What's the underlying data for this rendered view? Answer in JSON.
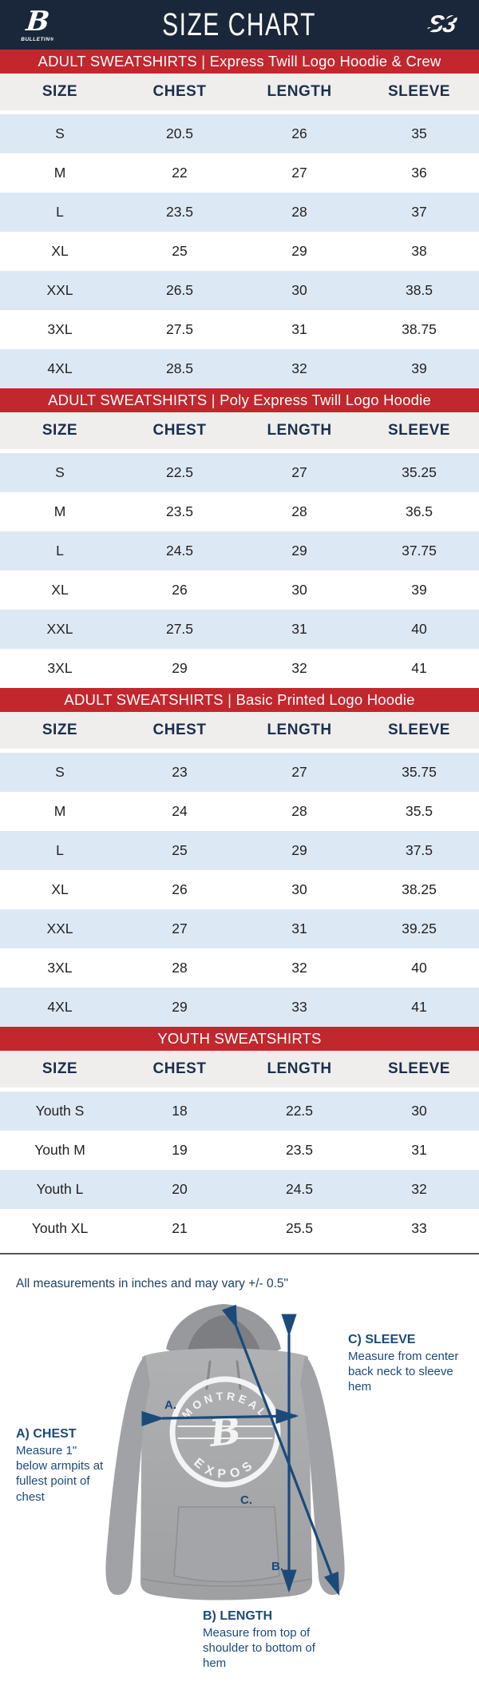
{
  "header": {
    "title": "SIZE CHART",
    "left_logo": {
      "glyph": "B",
      "brand": "BULLETIN®"
    },
    "right_logo": {
      "glyph": "S3"
    }
  },
  "columns": [
    "SIZE",
    "CHEST",
    "LENGTH",
    "SLEEVE"
  ],
  "tables": [
    {
      "banner": "ADULT SWEATSHIRTS | Express Twill Logo Hoodie & Crew",
      "rows": [
        [
          "S",
          "20.5",
          "26",
          "35"
        ],
        [
          "M",
          "22",
          "27",
          "36"
        ],
        [
          "L",
          "23.5",
          "28",
          "37"
        ],
        [
          "XL",
          "25",
          "29",
          "38"
        ],
        [
          "XXL",
          "26.5",
          "30",
          "38.5"
        ],
        [
          "3XL",
          "27.5",
          "31",
          "38.75"
        ],
        [
          "4XL",
          "28.5",
          "32",
          "39"
        ]
      ]
    },
    {
      "banner": "ADULT SWEATSHIRTS | Poly Express Twill Logo Hoodie",
      "rows": [
        [
          "S",
          "22.5",
          "27",
          "35.25"
        ],
        [
          "M",
          "23.5",
          "28",
          "36.5"
        ],
        [
          "L",
          "24.5",
          "29",
          "37.75"
        ],
        [
          "XL",
          "26",
          "30",
          "39"
        ],
        [
          "XXL",
          "27.5",
          "31",
          "40"
        ],
        [
          "3XL",
          "29",
          "32",
          "41"
        ]
      ]
    },
    {
      "banner": "ADULT SWEATSHIRTS | Basic Printed Logo Hoodie",
      "rows": [
        [
          "S",
          "23",
          "27",
          "35.75"
        ],
        [
          "M",
          "24",
          "28",
          "35.5"
        ],
        [
          "L",
          "25",
          "29",
          "37.5"
        ],
        [
          "XL",
          "26",
          "30",
          "38.25"
        ],
        [
          "XXL",
          "27",
          "31",
          "39.25"
        ],
        [
          "3XL",
          "28",
          "32",
          "40"
        ],
        [
          "4XL",
          "29",
          "33",
          "41"
        ]
      ]
    },
    {
      "banner": "YOUTH SWEATSHIRTS",
      "rows": [
        [
          "Youth S",
          "18",
          "22.5",
          "30"
        ],
        [
          "Youth M",
          "19",
          "23.5",
          "31"
        ],
        [
          "Youth L",
          "20",
          "24.5",
          "32"
        ],
        [
          "Youth XL",
          "21",
          "25.5",
          "33"
        ]
      ]
    }
  ],
  "note": "All measurements in inches and may vary +/- 0.5\"",
  "diagram": {
    "logo": {
      "line1": "MONTREAL",
      "line2": "EXPOS",
      "monogram": "B"
    },
    "labels": {
      "chest": {
        "title": "A) CHEST",
        "desc": "Measure 1\" below armpits at fullest point of chest"
      },
      "length": {
        "title": "B) LENGTH",
        "desc": "Measure from top of shoulder to bottom of hem"
      },
      "sleeve": {
        "title": "C) SLEEVE",
        "desc": "Measure from center back neck to sleeve hem"
      }
    },
    "arrow_letters": {
      "a": "A.",
      "b": "B.",
      "c": "C."
    }
  },
  "colors": {
    "navy_header": "#1a2639",
    "banner_red": "#c1272d",
    "row_blue": "#dce9f5",
    "thead_bg": "#efeeec",
    "thead_text": "#1b2f4d",
    "label_navy": "#1b4a7a"
  }
}
